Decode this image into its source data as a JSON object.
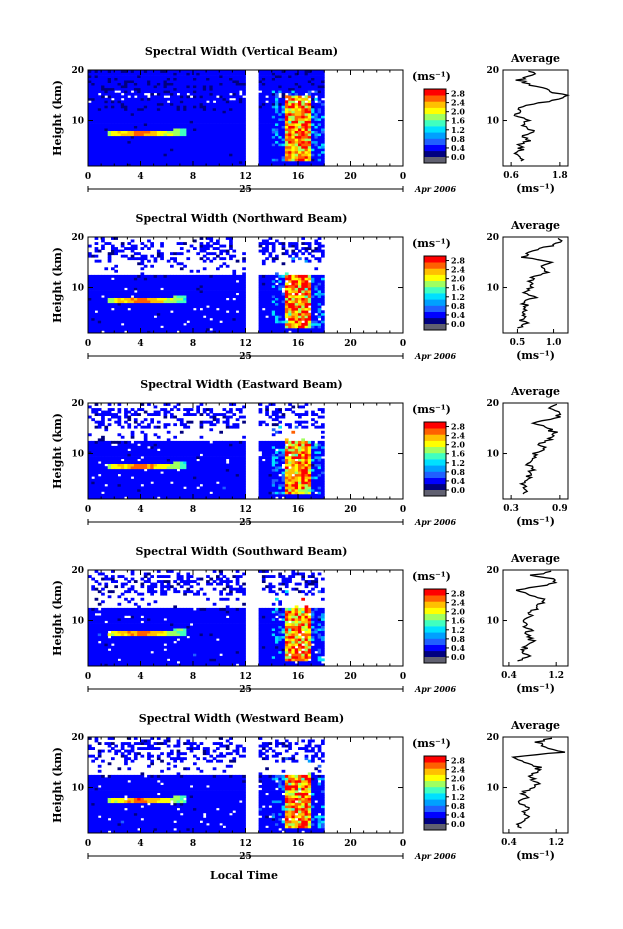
{
  "x_axis_label": "Local Time",
  "y_axis_label": "Height (km)",
  "date_label": "25",
  "month_label": "Apr 2006",
  "avg_title": "Average",
  "unit_label": "(ms⁻¹)",
  "colorbar_ticks": [
    "0.0",
    "0.4",
    "0.8",
    "1.2",
    "1.6",
    "2.0",
    "2.4",
    "2.8"
  ],
  "colorbar_range": [
    0.0,
    3.0
  ],
  "colors": {
    "scale": [
      "#000080",
      "#0000ff",
      "#2060ff",
      "#00a0ff",
      "#00e0ff",
      "#40ffc0",
      "#a0ff60",
      "#ffff00",
      "#ffc000",
      "#ff6000",
      "#ff0000"
    ],
    "low_band": "#606070"
  },
  "chart_data": [
    {
      "type": "heatmap",
      "title": "Spectral Width (Vertical Beam)",
      "x_ticks": [
        "0",
        "4",
        "8",
        "12",
        "16",
        "20",
        "0"
      ],
      "y_ticks": [
        "10",
        "20"
      ],
      "xlim": [
        0,
        24
      ],
      "ylim": [
        1,
        20
      ],
      "data_gap_hours": [
        12,
        13
      ],
      "data_end_hour": 18,
      "average_profile": {
        "x_ticks": [
          "0.6",
          "1.8"
        ],
        "xlim": [
          0.4,
          2.0
        ],
        "height": [
          2,
          3,
          4,
          5,
          6,
          7,
          8,
          9,
          10,
          11,
          12,
          13,
          14,
          15,
          16,
          17,
          18,
          19,
          20
        ],
        "value": [
          0.9,
          0.7,
          0.85,
          0.8,
          1.0,
          0.9,
          1.2,
          0.8,
          1.0,
          0.7,
          0.8,
          0.9,
          1.7,
          1.9,
          1.5,
          1.1,
          0.8,
          1.2,
          1.0
        ]
      }
    },
    {
      "type": "heatmap",
      "title": "Spectral Width (Northward Beam)",
      "x_ticks": [
        "0",
        "4",
        "8",
        "12",
        "16",
        "20",
        "0"
      ],
      "y_ticks": [
        "10",
        "20"
      ],
      "xlim": [
        0,
        24
      ],
      "ylim": [
        1,
        20
      ],
      "data_gap_hours": [
        12,
        13
      ],
      "data_end_hour": 18,
      "average_profile": {
        "x_ticks": [
          "0.5",
          "1.0"
        ],
        "xlim": [
          0.3,
          1.2
        ],
        "height": [
          2,
          3,
          4,
          5,
          6,
          7,
          8,
          9,
          10,
          11,
          12,
          13,
          14,
          15,
          16,
          17,
          18,
          19,
          20
        ],
        "value": [
          0.5,
          0.6,
          0.55,
          0.6,
          0.65,
          0.55,
          0.75,
          0.6,
          0.7,
          0.65,
          0.7,
          0.9,
          0.8,
          1.0,
          0.55,
          0.7,
          0.9,
          1.1,
          1.0
        ]
      }
    },
    {
      "type": "heatmap",
      "title": "Spectral Width (Eastward Beam)",
      "x_ticks": [
        "0",
        "4",
        "8",
        "12",
        "16",
        "20",
        "0"
      ],
      "y_ticks": [
        "10",
        "20"
      ],
      "xlim": [
        0,
        24
      ],
      "ylim": [
        1,
        20
      ],
      "data_gap_hours": [
        12,
        13
      ],
      "data_end_hour": 18,
      "average_profile": {
        "x_ticks": [
          "0.3",
          "0.9"
        ],
        "xlim": [
          0.2,
          1.0
        ],
        "height": [
          2,
          3,
          4,
          5,
          6,
          7,
          8,
          9,
          10,
          11,
          12,
          13,
          14,
          15,
          16,
          17,
          18,
          19,
          20
        ],
        "value": [
          0.4,
          0.5,
          0.45,
          0.55,
          0.5,
          0.6,
          0.5,
          0.55,
          0.6,
          0.7,
          0.65,
          0.8,
          0.85,
          0.75,
          0.6,
          0.85,
          0.9,
          0.8,
          0.9
        ]
      }
    },
    {
      "type": "heatmap",
      "title": "Spectral Width (Southward Beam)",
      "x_ticks": [
        "0",
        "4",
        "8",
        "12",
        "16",
        "20",
        "0"
      ],
      "y_ticks": [
        "10",
        "20"
      ],
      "xlim": [
        0,
        24
      ],
      "ylim": [
        1,
        20
      ],
      "data_gap_hours": [
        12,
        13
      ],
      "data_end_hour": 18,
      "average_profile": {
        "x_ticks": [
          "0.4",
          "1.2"
        ],
        "xlim": [
          0.3,
          1.4
        ],
        "height": [
          2,
          3,
          4,
          5,
          6,
          7,
          8,
          9,
          10,
          11,
          12,
          13,
          14,
          15,
          16,
          17,
          18,
          19,
          20
        ],
        "value": [
          0.6,
          0.7,
          0.65,
          0.7,
          0.8,
          0.7,
          0.75,
          0.65,
          0.7,
          0.75,
          0.8,
          0.9,
          1.0,
          0.8,
          0.5,
          1.1,
          1.2,
          0.8,
          1.3
        ]
      }
    },
    {
      "type": "heatmap",
      "title": "Spectral Width (Westward Beam)",
      "x_ticks": [
        "0",
        "4",
        "8",
        "12",
        "16",
        "20",
        "0"
      ],
      "y_ticks": [
        "10",
        "20"
      ],
      "xlim": [
        0,
        24
      ],
      "ylim": [
        1,
        20
      ],
      "data_gap_hours": [
        12,
        13
      ],
      "data_end_hour": 18,
      "average_profile": {
        "x_ticks": [
          "0.4",
          "1.2"
        ],
        "xlim": [
          0.3,
          1.4
        ],
        "height": [
          2,
          3,
          4,
          5,
          6,
          7,
          8,
          9,
          10,
          11,
          12,
          13,
          14,
          15,
          16,
          17,
          18,
          19,
          20
        ],
        "value": [
          0.6,
          0.55,
          0.7,
          0.65,
          0.75,
          0.6,
          0.7,
          0.65,
          0.8,
          0.9,
          0.75,
          0.85,
          0.9,
          0.7,
          0.5,
          1.3,
          1.0,
          0.9,
          1.2
        ]
      }
    }
  ]
}
